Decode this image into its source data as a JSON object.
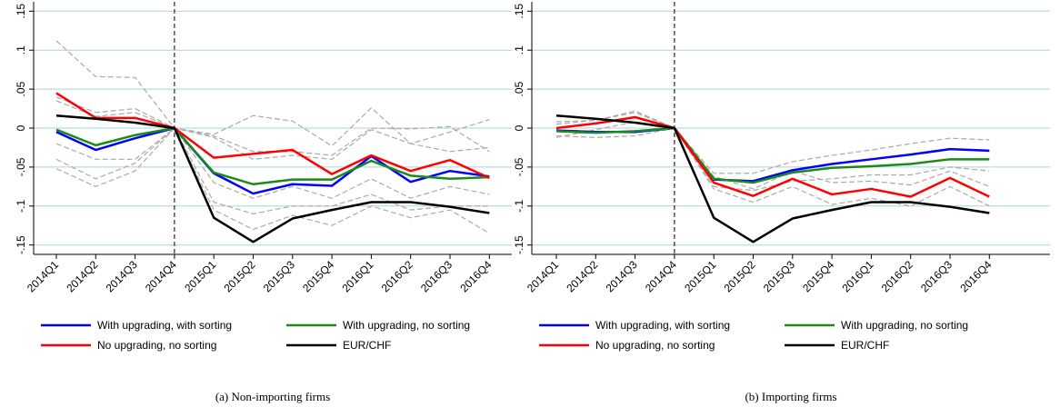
{
  "chart_data": [
    {
      "type": "line",
      "caption": "(a) Non-importing firms",
      "categories": [
        "2014Q1",
        "2014Q2",
        "2014Q3",
        "2014Q4",
        "2015Q1",
        "2015Q2",
        "2015Q3",
        "2015Q4",
        "2016Q1",
        "2016Q2",
        "2016Q3",
        "2016Q4"
      ],
      "reference_line_category": "2014Q4",
      "ylim": [
        -0.162,
        0.162
      ],
      "yticks": [
        {
          "value": -0.15,
          "label": "-.15"
        },
        {
          "value": -0.1,
          "label": "-.1"
        },
        {
          "value": -0.05,
          "label": "-.05"
        },
        0,
        {
          "value": 0.05,
          "label": ".05"
        },
        {
          "value": 0.1,
          "label": ".1"
        },
        {
          "value": 0.15,
          "label": ".15"
        }
      ],
      "grid": true,
      "series": [
        {
          "color": "#aaaaaa",
          "dashed": true,
          "values": [
            0.112,
            0.066,
            0.065,
            0,
            -0.008,
            0.016,
            0.009,
            -0.023,
            0.026,
            -0.02,
            -0.03,
            -0.025
          ]
        },
        {
          "color": "#aaaaaa",
          "dashed": true,
          "values": [
            0.04,
            0.02,
            0.025,
            0,
            -0.01,
            -0.03,
            -0.03,
            -0.035,
            0.0,
            -0.001,
            0.002,
            -0.03
          ]
        },
        {
          "color": "#aaaaaa",
          "dashed": true,
          "values": [
            0.035,
            0.015,
            0.02,
            0,
            -0.012,
            -0.04,
            -0.035,
            -0.04,
            -0.002,
            -0.02,
            -0.005,
            0.011
          ]
        },
        {
          "color": "#aaaaaa",
          "dashed": true,
          "values": [
            -0.02,
            -0.04,
            -0.04,
            0,
            -0.07,
            -0.09,
            -0.075,
            -0.09,
            -0.065,
            -0.09,
            -0.075,
            -0.085
          ]
        },
        {
          "color": "#aaaaaa",
          "dashed": true,
          "values": [
            -0.04,
            -0.065,
            -0.045,
            0,
            -0.095,
            -0.11,
            -0.1,
            -0.1,
            -0.085,
            -0.105,
            -0.1,
            -0.1
          ]
        },
        {
          "color": "#aaaaaa",
          "dashed": true,
          "values": [
            -0.052,
            -0.075,
            -0.055,
            0,
            -0.105,
            -0.13,
            -0.112,
            -0.125,
            -0.1,
            -0.115,
            -0.105,
            -0.135
          ]
        },
        {
          "name": "With upgrading, with sorting",
          "color": "#0000ff",
          "values": [
            -0.005,
            -0.028,
            -0.013,
            0,
            -0.058,
            -0.084,
            -0.072,
            -0.074,
            -0.036,
            -0.069,
            -0.055,
            -0.062
          ]
        },
        {
          "name": "With upgrading, no sorting",
          "color": "#1a8a1a",
          "values": [
            -0.002,
            -0.022,
            -0.009,
            0,
            -0.057,
            -0.072,
            -0.066,
            -0.066,
            -0.042,
            -0.061,
            -0.065,
            -0.063
          ]
        },
        {
          "name": "No upgrading, no sorting",
          "color": "#ff0000",
          "values": [
            0.045,
            0.013,
            0.013,
            0,
            -0.038,
            -0.033,
            -0.028,
            -0.059,
            -0.035,
            -0.055,
            -0.041,
            -0.064
          ]
        },
        {
          "name": "EUR/CHF",
          "color": "#000000",
          "values": [
            0.016,
            0.012,
            0.007,
            0,
            -0.115,
            -0.146,
            -0.116,
            -0.105,
            -0.095,
            -0.095,
            -0.101,
            -0.109
          ]
        }
      ]
    },
    {
      "type": "line",
      "caption": "(b) Importing firms",
      "categories": [
        "2014Q1",
        "2014Q2",
        "2014Q3",
        "2014Q4",
        "2015Q1",
        "2015Q2",
        "2015Q3",
        "2015Q4",
        "2016Q1",
        "2016Q2",
        "2016Q3",
        "2016Q4"
      ],
      "reference_line_category": "2014Q4",
      "ylim": [
        -0.162,
        0.162
      ],
      "yticks": [
        {
          "value": -0.15,
          "label": "-.15"
        },
        {
          "value": -0.1,
          "label": "-.1"
        },
        {
          "value": -0.05,
          "label": "-.05"
        },
        0,
        {
          "value": 0.05,
          "label": ".05"
        },
        {
          "value": 0.1,
          "label": ".1"
        },
        {
          "value": 0.15,
          "label": ".15"
        }
      ],
      "grid": true,
      "series": [
        {
          "color": "#aaaaaa",
          "dashed": true,
          "values": [
            0.008,
            0.01,
            0.022,
            0,
            -0.058,
            -0.058,
            -0.043,
            -0.035,
            -0.028,
            -0.02,
            -0.013,
            -0.015
          ]
        },
        {
          "color": "#aaaaaa",
          "dashed": true,
          "values": [
            -0.01,
            -0.012,
            -0.01,
            0,
            -0.075,
            -0.08,
            -0.068,
            -0.065,
            -0.06,
            -0.06,
            -0.05,
            -0.055
          ]
        },
        {
          "color": "#aaaaaa",
          "dashed": true,
          "values": [
            0.005,
            0.01,
            0.02,
            0,
            -0.062,
            -0.078,
            -0.055,
            -0.07,
            -0.068,
            -0.073,
            -0.055,
            -0.075
          ]
        },
        {
          "color": "#aaaaaa",
          "dashed": true,
          "values": [
            -0.012,
            -0.002,
            0.008,
            0,
            -0.078,
            -0.095,
            -0.075,
            -0.098,
            -0.09,
            -0.1,
            -0.075,
            -0.1
          ]
        },
        {
          "name": "With upgrading, with sorting",
          "color": "#0000ff",
          "values": [
            -0.003,
            -0.005,
            -0.005,
            0,
            -0.066,
            -0.068,
            -0.054,
            -0.046,
            -0.04,
            -0.034,
            -0.027,
            -0.029
          ]
        },
        {
          "name": "With upgrading, no sorting",
          "color": "#1a8a1a",
          "values": [
            -0.004,
            -0.006,
            -0.004,
            0,
            -0.065,
            -0.07,
            -0.057,
            -0.051,
            -0.049,
            -0.046,
            -0.04,
            -0.04
          ]
        },
        {
          "name": "No upgrading, no sorting",
          "color": "#ff0000",
          "values": [
            0.0,
            0.006,
            0.014,
            0,
            -0.07,
            -0.087,
            -0.065,
            -0.085,
            -0.078,
            -0.088,
            -0.064,
            -0.088
          ]
        },
        {
          "name": "EUR/CHF",
          "color": "#000000",
          "values": [
            0.016,
            0.012,
            0.007,
            0,
            -0.115,
            -0.146,
            -0.116,
            -0.105,
            -0.095,
            -0.095,
            -0.101,
            -0.109
          ]
        }
      ]
    }
  ]
}
